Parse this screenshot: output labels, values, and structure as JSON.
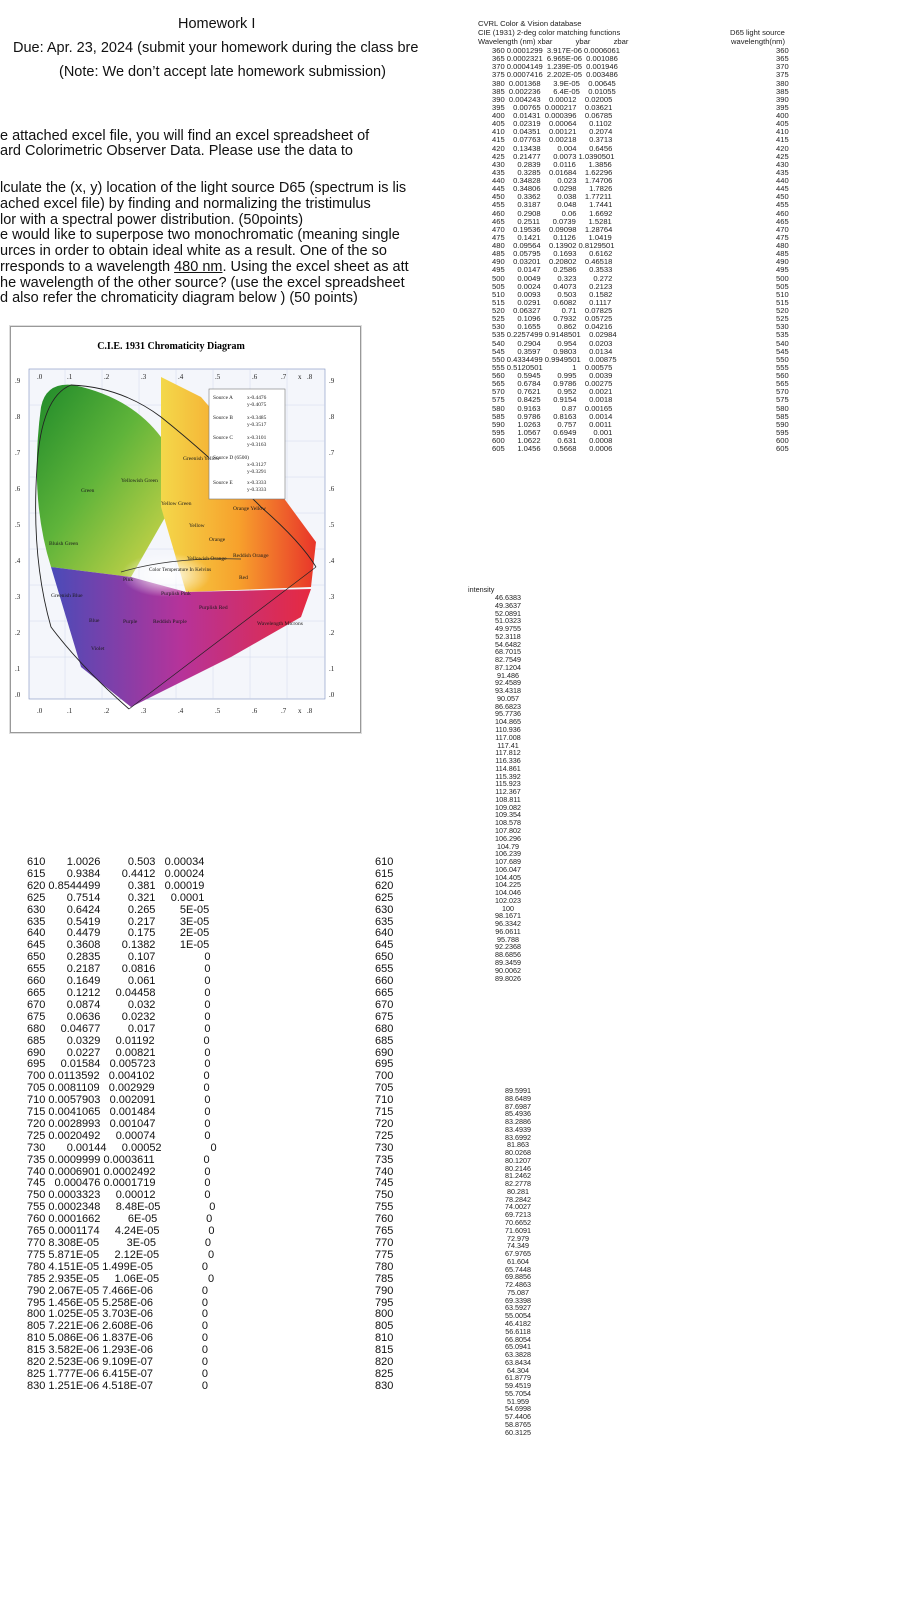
{
  "homework": {
    "title": "Homework I",
    "due": "Due: Apr. 23, 2024 (submit your homework during the class bre",
    "note": "(Note: We don’t accept late homework submission)",
    "intro": [
      "e attached excel file, you will find an excel spreadsheet of",
      "ard Colorimetric Observer Data.  Please use the data to"
    ],
    "q1": [
      "lculate the (x, y) location of the light source D65 (spectrum is lis",
      "ached excel file) by finding and normalizing the tristimulus",
      "lor with a spectral power distribution. (50points)"
    ],
    "q2_line1": "e would like to superpose two monochromatic (meaning single",
    "q2_line2": "urces in order to obtain ideal white as a result. One of the so",
    "q2_line3_a": "rresponds to a wavelength ",
    "q2_line3_u": "480 nm",
    "q2_line3_b": ". Using the excel sheet as att",
    "q2_line4": "he wavelength of the other source? (use the excel spreadsheet",
    "q2_line5": "d also refer the chromaticity diagram below )  (50 points)"
  },
  "cie_chart": {
    "title": "C.I.E. 1931 Chromaticity Diagram",
    "sources": [
      {
        "name": "Source A",
        "x": "x-0.4476",
        "y": "y-0.4075"
      },
      {
        "name": "Source B",
        "x": "x-0.3485",
        "y": "y-0.3517"
      },
      {
        "name": "Source C",
        "x": "x-0.3101",
        "y": "y-0.3163"
      },
      {
        "name": "Source D (6500)",
        "x": "x-0.3127",
        "y": "y-0.3291"
      },
      {
        "name": "Source E",
        "x": "x-0.3333",
        "y": "y-0.3333"
      }
    ],
    "regions": [
      "Green",
      "Yellowish Green",
      "Greenish Yellow",
      "Yellow Green",
      "Yellow",
      "Orange Yellow",
      "Orange",
      "Reddish Orange",
      "Red",
      "Bluish Green",
      "Greenish Blue",
      "Blue",
      "Violet",
      "Purple",
      "Reddish Purple",
      "Purplish Red",
      "Purplish Pink",
      "Pink",
      "Yellowish Orange"
    ],
    "color_temp_label": "Color Temperature In Kelvins",
    "wavelength_label": "Wavelength Microns",
    "x_ticks": [
      ".0",
      ".1",
      ".2",
      ".3",
      ".4",
      ".5",
      ".6",
      ".7",
      "x",
      ".8"
    ],
    "y_ticks": [
      ".9",
      ".8",
      ".7",
      ".6",
      ".5",
      ".4",
      ".3",
      ".2",
      ".1",
      ".0"
    ]
  },
  "right_header": {
    "line1": "CVRL Color & Vision database",
    "line2": "CIE (1931) 2-deg color matching functions",
    "cols": "Wavelength (nm) xbar           ybar           zbar",
    "d65_line1": "D65 light source",
    "d65_line2": "wavelength(nm)"
  },
  "cmf_top": "360 0.0001299  3.917E-06 0.0006061\n365 0.0002321  6.965E-06  0.001086\n370 0.0004149  1.239E-05  0.001946\n375 0.0007416  2.202E-05  0.003486\n380  0.001368      3.9E-05    0.00645\n385  0.002236      6.4E-05    0.01055\n390  0.004243    0.00012    0.02005\n395    0.00765  0.000217    0.03621\n400    0.01431  0.000396    0.06785\n405    0.02319    0.00064      0.1102\n410    0.04351    0.00121      0.2074\n415    0.07763    0.00218      0.3713\n420    0.13438        0.004      0.6456\n425    0.21477      0.0073 1.0390501\n430      0.2839      0.0116      1.3856\n435      0.3285    0.01684    1.62296\n440    0.34828        0.023    1.74706\n445    0.34806      0.0298      1.7826\n450      0.3362        0.038    1.77211\n455      0.3187        0.048      1.7441\n460      0.2908          0.06      1.6692\n465      0.2511      0.0739      1.5281\n470    0.19536    0.09098    1.28764\n475      0.1421      0.1126      1.0419\n480    0.09564    0.13902 0.8129501\n485    0.05795      0.1693      0.6162\n490    0.03201    0.20802    0.46518\n495      0.0147      0.2586      0.3533\n500      0.0049        0.323        0.272\n505      0.0024      0.4073      0.2123\n510      0.0093        0.503      0.1582\n515      0.0291      0.6082      0.1117\n520    0.06327          0.71    0.07825\n525      0.1096      0.7932    0.05725\n530      0.1655        0.862    0.04216\n535 0.2257499 0.9148501    0.02984\n540      0.2904        0.954      0.0203\n545      0.3597      0.9803      0.0134\n550 0.4334499 0.9949501    0.00875\n555 0.5120501              1    0.00575\n560      0.5945        0.995      0.0039\n565      0.6784      0.9786    0.00275\n570      0.7621        0.952      0.0021\n575      0.8425      0.9154      0.0018\n580      0.9163          0.87    0.00165\n585      0.9786      0.8163      0.0014\n590      1.0263        0.757      0.0011\n595      1.0567      0.6949        0.001\n600      1.0622        0.631      0.0008\n605      1.0456      0.5668      0.0006",
  "d65_wl_top": "360\n365\n370\n375\n380\n385\n390\n395\n400\n405\n410\n415\n420\n425\n430\n435\n440\n445\n450\n455\n460\n465\n470\n475\n480\n485\n490\n495\n500\n505\n510\n515\n520\n525\n530\n535\n540\n545\n550\n555\n560\n565\n570\n575\n580\n585\n590\n595\n600\n605",
  "intensity_label": "intensity",
  "intensity_top": "46.6383\n49.3637\n52.0891\n51.0323\n49.9755\n52.3118\n54.6482\n68.7015\n82.7549\n87.1204\n91.486\n92.4589\n93.4318\n90.057\n86.6823\n95.7736\n104.865\n110.936\n117.008\n117.41\n117.812\n116.336\n114.861\n115.392\n115.923\n112.367\n108.811\n109.082\n109.354\n108.578\n107.802\n106.296\n104.79\n106.239\n107.689\n106.047\n104.405\n104.225\n104.046\n102.023\n100\n98.1671\n96.3342\n96.0611\n95.788\n92.2368\n88.6856\n89.3459\n90.0062\n89.8026",
  "intensity_bottom": "89.5991\n88.6489\n87.6987\n85.4936\n83.2886\n83.4939\n83.6992\n81.863\n80.0268\n80.1207\n80.2146\n81.2462\n82.2778\n80.281\n78.2842\n74.0027\n69.7213\n70.6652\n71.6091\n72.979\n74.349\n67.9765\n61.604\n65.7448\n69.8856\n72.4863\n75.087\n69.3398\n63.5927\n55.0054\n46.4182\n56.6118\n66.8054\n65.0941\n63.3828\n63.8434\n64.304\n61.8779\n59.4519\n55.7054\n51.959\n54.6998\n57.4406\n58.8765\n60.3125",
  "cmf_bottom": "610       1.0026         0.503   0.00034\n615       0.9384       0.4412   0.00024\n620 0.8544499         0.381   0.00019\n625       0.7514         0.321     0.0001\n630       0.6424         0.265        5E-05\n635       0.5419         0.217        3E-05\n640       0.4479         0.175        2E-05\n645       0.3608       0.1382        1E-05\n650       0.2835         0.107                0\n655       0.2187       0.0816                0\n660       0.1649         0.061                0\n665       0.1212     0.04458                0\n670       0.0874         0.032                0\n675       0.0636       0.0232                0\n680     0.04677         0.017                0\n685       0.0329     0.01192                0\n690       0.0227     0.00821                0\n695     0.01584   0.005723                0\n700 0.0113592   0.004102                0\n705 0.0081109   0.002929                0\n710 0.0057903   0.002091                0\n715 0.0041065   0.001484                0\n720 0.0028993   0.001047                0\n725 0.0020492     0.00074                0\n730       0.00144     0.00052                0\n735 0.0009999 0.0003611                0\n740 0.0006901 0.0002492                0\n745   0.000476 0.0001719                0\n750 0.0003323     0.00012                0\n755 0.0002348     8.48E-05                0\n760 0.0001662         6E-05                0\n765 0.0001174     4.24E-05                0\n770 8.308E-05         3E-05                0\n775 5.871E-05     2.12E-05                0\n780 4.151E-05 1.499E-05                0\n785 2.935E-05     1.06E-05                0\n790 2.067E-05 7.466E-06                0\n795 1.456E-05 5.258E-06                0\n800 1.025E-05 3.703E-06                0\n805 7.221E-06 2.608E-06                0\n810 5.086E-06 1.837E-06                0\n815 3.582E-06 1.293E-06                0\n820 2.523E-06 9.109E-07                0\n825 1.777E-06 6.415E-07                0\n830 1.251E-06 4.518E-07                0",
  "wl_bottom": "610\n615\n620\n625\n630\n635\n640\n645\n650\n655\n660\n665\n670\n675\n680\n685\n690\n695\n700\n705\n710\n715\n720\n725\n730\n735\n740\n745\n750\n755\n760\n765\n770\n775\n780\n785\n790\n795\n800\n805\n810\n815\n820\n825\n830"
}
